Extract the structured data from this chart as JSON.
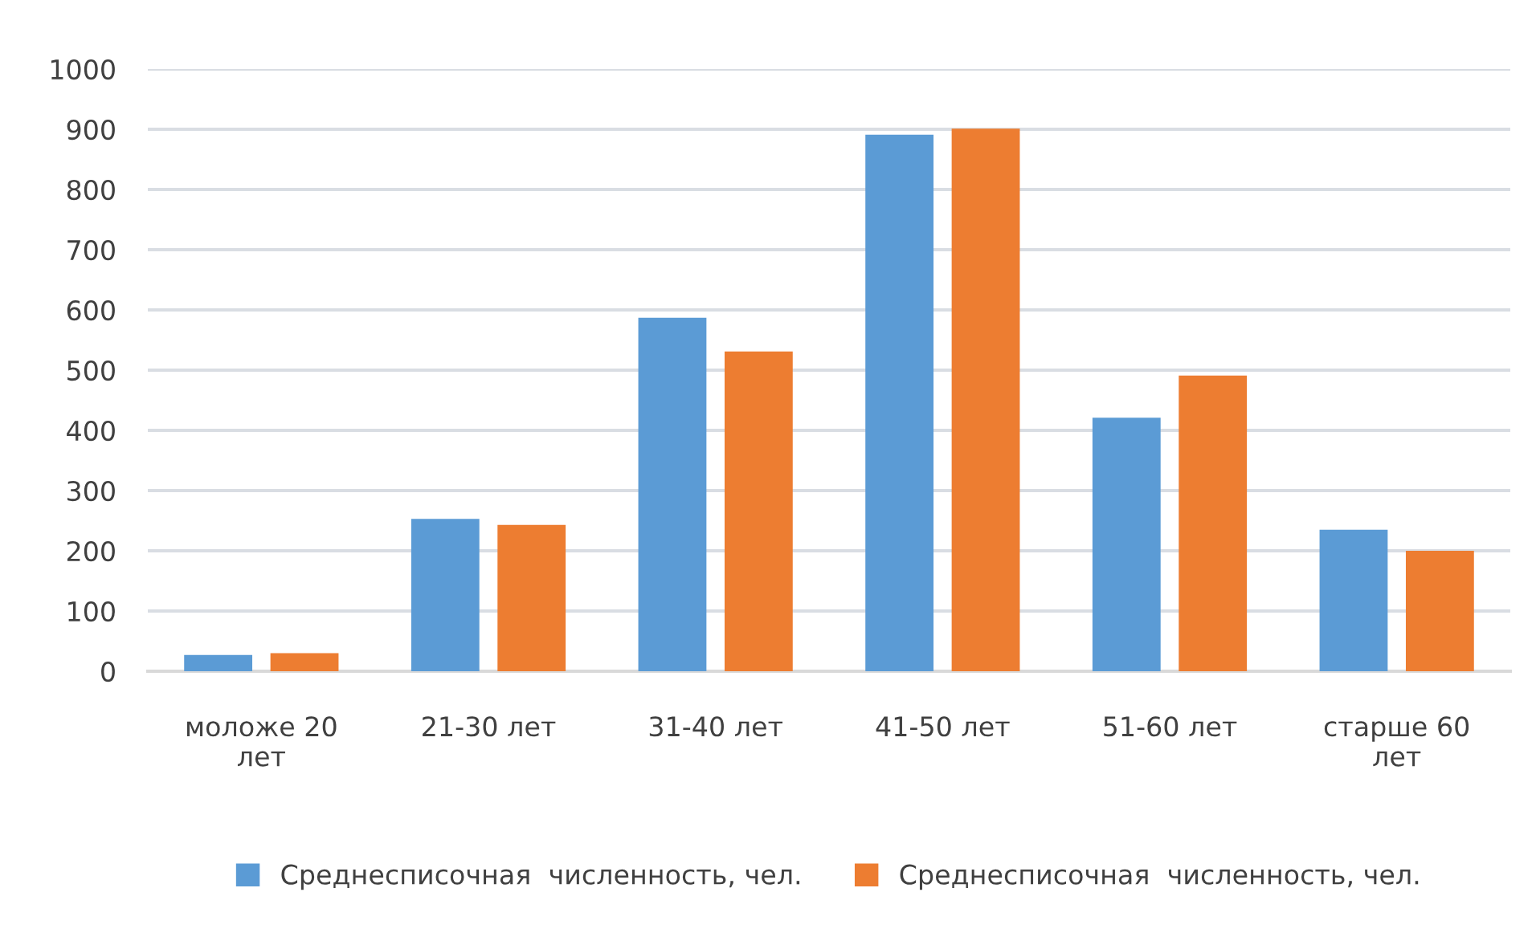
{
  "chart_data": {
    "type": "bar",
    "categories": [
      "моложе 20\nлет",
      "21-30 лет",
      "31-40 лет",
      "41-50 лет",
      "51-60 лет",
      "старше 60\nлет"
    ],
    "series": [
      {
        "name": "Среднесписочная  численность, чел.",
        "color": "#5b9bd5",
        "values": [
          27,
          253,
          587,
          891,
          421,
          235
        ]
      },
      {
        "name": "Среднесписочная  численность, чел.",
        "color": "#ed7d31",
        "values": [
          30,
          243,
          531,
          901,
          491,
          200
        ]
      }
    ],
    "ylim": [
      0,
      1000
    ],
    "yticks": [
      0,
      100,
      200,
      300,
      400,
      500,
      600,
      700,
      800,
      900,
      1000
    ],
    "grid": "y",
    "legend": "bottom"
  }
}
